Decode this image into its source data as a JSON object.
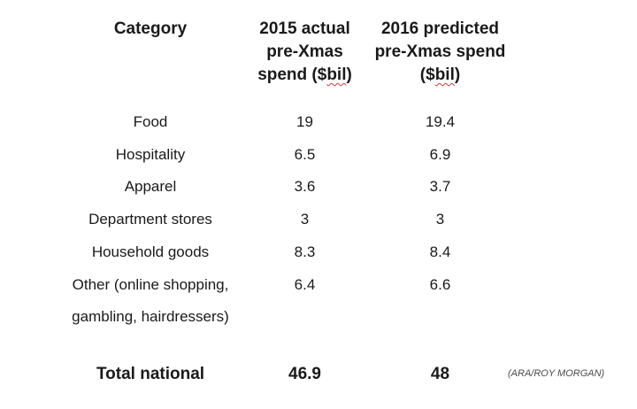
{
  "table": {
    "headers": {
      "category": "Category",
      "col_2015": [
        "2015 actual",
        "pre-Xmas",
        "spend ($",
        "bil",
        ")"
      ],
      "col_2016": [
        "2016 predicted",
        "pre-Xmas spend",
        "($",
        "bil",
        ")"
      ]
    },
    "rows": [
      {
        "category": [
          "Food"
        ],
        "v2015": "19",
        "v2016": "19.4"
      },
      {
        "category": [
          "Hospitality"
        ],
        "v2015": "6.5",
        "v2016": "6.9"
      },
      {
        "category": [
          "Apparel"
        ],
        "v2015": "3.6",
        "v2016": "3.7"
      },
      {
        "category": [
          "Department stores"
        ],
        "v2015": "3",
        "v2016": "3"
      },
      {
        "category": [
          "Household goods"
        ],
        "v2015": "8.3",
        "v2016": "8.4"
      },
      {
        "category": [
          "Other (online shopping,",
          "gambling, hairdressers)"
        ],
        "v2015": "6.4",
        "v2016": "6.6"
      }
    ],
    "total": {
      "label": "Total national",
      "v2015": "46.9",
      "v2016": "48"
    }
  },
  "source": "(ARA/ROY MORGAN)"
}
